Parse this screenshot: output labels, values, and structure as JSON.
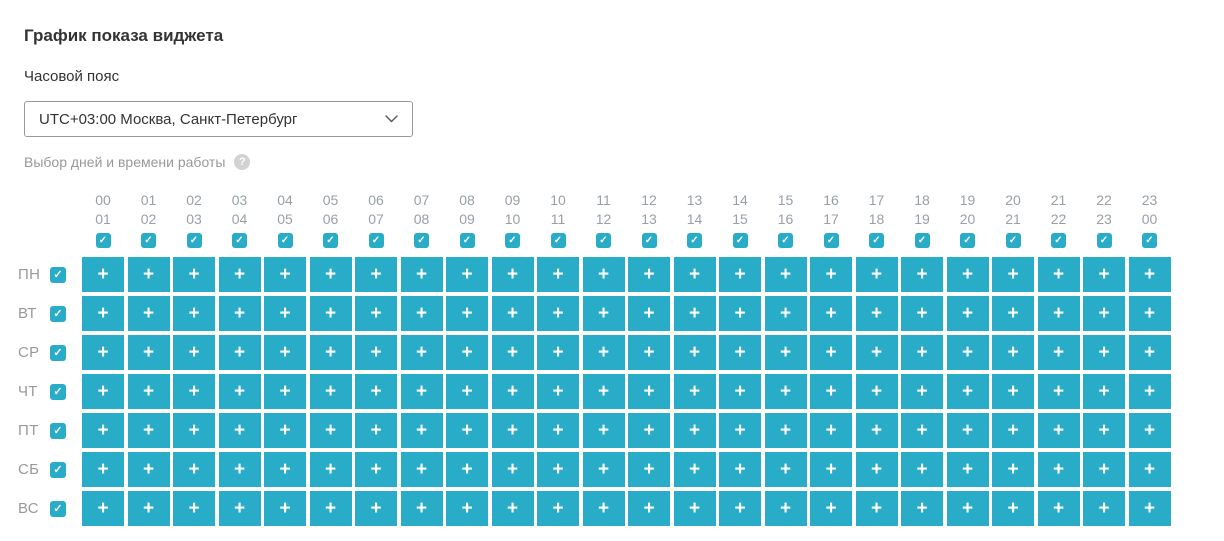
{
  "page": {
    "title": "График показа виджета"
  },
  "timezone": {
    "label": "Часовой пояс",
    "selected_option": "UTC+03:00 Москва, Санкт-Петербург"
  },
  "schedule": {
    "section_label": "Выбор дней и времени работы",
    "cell_symbol": "+",
    "all_slots_selected": true,
    "hours": [
      {
        "start": "00",
        "end": "01",
        "checked": true
      },
      {
        "start": "01",
        "end": "02",
        "checked": true
      },
      {
        "start": "02",
        "end": "03",
        "checked": true
      },
      {
        "start": "03",
        "end": "04",
        "checked": true
      },
      {
        "start": "04",
        "end": "05",
        "checked": true
      },
      {
        "start": "05",
        "end": "06",
        "checked": true
      },
      {
        "start": "06",
        "end": "07",
        "checked": true
      },
      {
        "start": "07",
        "end": "08",
        "checked": true
      },
      {
        "start": "08",
        "end": "09",
        "checked": true
      },
      {
        "start": "09",
        "end": "10",
        "checked": true
      },
      {
        "start": "10",
        "end": "11",
        "checked": true
      },
      {
        "start": "11",
        "end": "12",
        "checked": true
      },
      {
        "start": "12",
        "end": "13",
        "checked": true
      },
      {
        "start": "13",
        "end": "14",
        "checked": true
      },
      {
        "start": "14",
        "end": "15",
        "checked": true
      },
      {
        "start": "15",
        "end": "16",
        "checked": true
      },
      {
        "start": "16",
        "end": "17",
        "checked": true
      },
      {
        "start": "17",
        "end": "18",
        "checked": true
      },
      {
        "start": "18",
        "end": "19",
        "checked": true
      },
      {
        "start": "19",
        "end": "20",
        "checked": true
      },
      {
        "start": "20",
        "end": "21",
        "checked": true
      },
      {
        "start": "21",
        "end": "22",
        "checked": true
      },
      {
        "start": "22",
        "end": "23",
        "checked": true
      },
      {
        "start": "23",
        "end": "00",
        "checked": true
      }
    ],
    "days": [
      {
        "label": "ПН",
        "checked": true
      },
      {
        "label": "ВТ",
        "checked": true
      },
      {
        "label": "СР",
        "checked": true
      },
      {
        "label": "ЧТ",
        "checked": true
      },
      {
        "label": "ПТ",
        "checked": true
      },
      {
        "label": "СБ",
        "checked": true
      },
      {
        "label": "ВС",
        "checked": true
      }
    ]
  },
  "icons": {
    "check": "✓",
    "help": "?"
  },
  "colors": {
    "accent": "#29acc8",
    "text_dark": "#333333",
    "text_gray": "#999999",
    "hour_text": "#98a0a6",
    "select_border": "#999999",
    "help_icon_bg": "#d2d2d2"
  }
}
